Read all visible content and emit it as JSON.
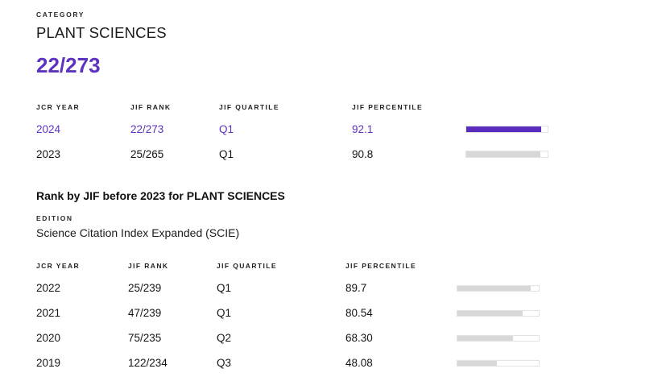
{
  "colors": {
    "accent": "#5e33bf",
    "bar_purple": "#5b2dbe",
    "bar_gray": "#d8d8d8",
    "track_border": "#e3e3e3"
  },
  "header": {
    "category_label": "CATEGORY",
    "category_name": "PLANT SCIENCES",
    "rank_display": "22/273"
  },
  "tables": {
    "current": {
      "headers": [
        "JCR YEAR",
        "JIF RANK",
        "JIF QUARTILE",
        "JIF PERCENTILE"
      ],
      "rows": [
        {
          "year": "2024",
          "rank": "22/273",
          "quartile": "Q1",
          "percentile": "92.1",
          "bar_pct": 92.1,
          "highlight": true
        },
        {
          "year": "2023",
          "rank": "25/265",
          "quartile": "Q1",
          "percentile": "90.8",
          "bar_pct": 90.8,
          "highlight": false
        }
      ]
    },
    "history": {
      "headers": [
        "JCR YEAR",
        "JIF RANK",
        "JIF QUARTILE",
        "JIF PERCENTILE"
      ],
      "rows": [
        {
          "year": "2022",
          "rank": "25/239",
          "quartile": "Q1",
          "percentile": "89.7",
          "bar_pct": 89.7,
          "highlight": false
        },
        {
          "year": "2021",
          "rank": "47/239",
          "quartile": "Q1",
          "percentile": "80.54",
          "bar_pct": 80.54,
          "highlight": false
        },
        {
          "year": "2020",
          "rank": "75/235",
          "quartile": "Q2",
          "percentile": "68.30",
          "bar_pct": 68.3,
          "highlight": false
        },
        {
          "year": "2019",
          "rank": "122/234",
          "quartile": "Q3",
          "percentile": "48.08",
          "bar_pct": 48.08,
          "highlight": false
        }
      ]
    }
  },
  "history_section": {
    "title": "Rank by JIF before 2023 for PLANT SCIENCES",
    "edition_label": "EDITION",
    "edition_value": "Science Citation Index Expanded (SCIE)"
  }
}
